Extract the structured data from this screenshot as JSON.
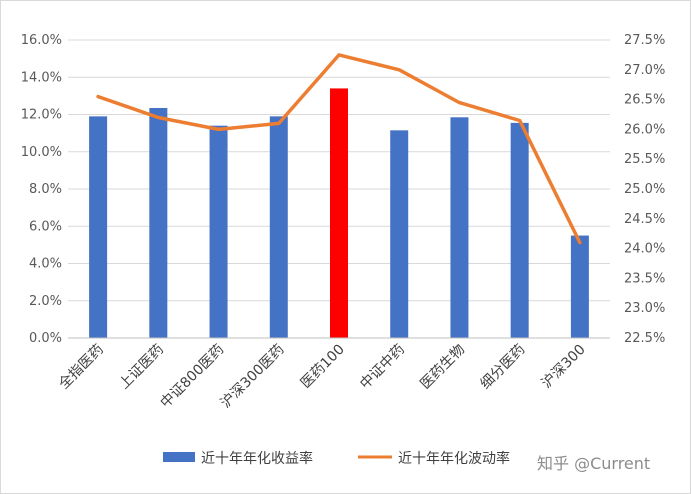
{
  "chart_data": {
    "type": "bar",
    "categories": [
      "全指医药",
      "上证医药",
      "中证800医药",
      "沪深300医药",
      "医药100",
      "中证中药",
      "医药生物",
      "细分医药",
      "沪深300"
    ],
    "series": [
      {
        "name": "近十年年化收益率",
        "type": "bar",
        "axis": "left",
        "color": "#4472C4",
        "values": [
          11.9,
          12.35,
          11.4,
          11.9,
          13.4,
          11.15,
          11.85,
          11.55,
          5.5
        ]
      },
      {
        "name": "近十年年化波动率",
        "type": "line",
        "axis": "right",
        "color": "#ED7D31",
        "values": [
          26.55,
          26.2,
          26.0,
          26.1,
          27.25,
          27.0,
          26.45,
          26.15,
          24.1
        ]
      }
    ],
    "highlight": {
      "category": "医药100",
      "color": "#FF0000"
    },
    "y_left": {
      "min": 0,
      "max": 16,
      "step": 2,
      "format": "percent-1dp",
      "ticks": [
        "0.0%",
        "2.0%",
        "4.0%",
        "6.0%",
        "8.0%",
        "10.0%",
        "12.0%",
        "14.0%",
        "16.0%"
      ]
    },
    "y_right": {
      "min": 22.5,
      "max": 27.5,
      "step": 0.5,
      "format": "percent-1dp",
      "ticks": [
        "22.5%",
        "23.0%",
        "23.5%",
        "24.0%",
        "24.5%",
        "25.0%",
        "25.5%",
        "26.0%",
        "26.5%",
        "27.0%",
        "27.5%"
      ]
    },
    "grid": true,
    "legend_position": "bottom",
    "title": "",
    "xlabel": "",
    "ylabel": ""
  },
  "legend": {
    "bar_label": "近十年年化收益率",
    "line_label": "近十年年化波动率"
  },
  "watermark": "知乎 @Current"
}
